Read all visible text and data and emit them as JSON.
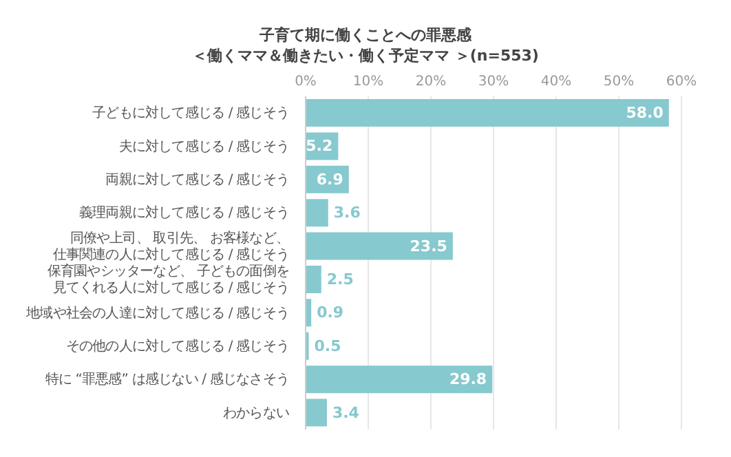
{
  "chart_data": {
    "type": "bar",
    "orientation": "horizontal",
    "title": "子育て期に働くことへの罪悪感",
    "subtitle": "＜働くママ＆働きたい・働く予定ママ ＞(n=553)",
    "categories": [
      "子どもに対して感じる / 感じそう",
      "夫に対して感じる / 感じそう",
      "両親に対して感じる / 感じそう",
      "義理両親に対して感じる / 感じそう",
      "同僚や上司、 取引先、 お客様など、仕事関連の人に対して感じる / 感じそう",
      "保育園やシッターなど、 子どもの面倒を見てくれる人に対して感じる / 感じそう",
      "地域や社会の人達に対して感じる / 感じそう",
      "その他の人に対して感じる / 感じそう",
      "特に “罪悪感” は感じない / 感じなさそう",
      "わからない"
    ],
    "values": [
      58.0,
      5.2,
      6.9,
      3.6,
      23.5,
      2.5,
      0.9,
      0.5,
      29.8,
      3.4
    ],
    "value_labels": [
      "58.0",
      "5.2",
      "6.9",
      "3.6",
      "23.5",
      "2.5",
      "0.9",
      "0.5",
      "29.8",
      "3.4"
    ],
    "color": "#86c9ce",
    "xlim": [
      0,
      60
    ],
    "xticks": [
      {
        "value": 0,
        "label": "0%"
      },
      {
        "value": 10,
        "label": "10%"
      },
      {
        "value": 20,
        "label": "20%"
      },
      {
        "value": 30,
        "label": "30%"
      },
      {
        "value": 40,
        "label": "40%"
      },
      {
        "value": 50,
        "label": "50%"
      },
      {
        "value": 60,
        "label": "60%"
      }
    ],
    "grid": "x"
  }
}
